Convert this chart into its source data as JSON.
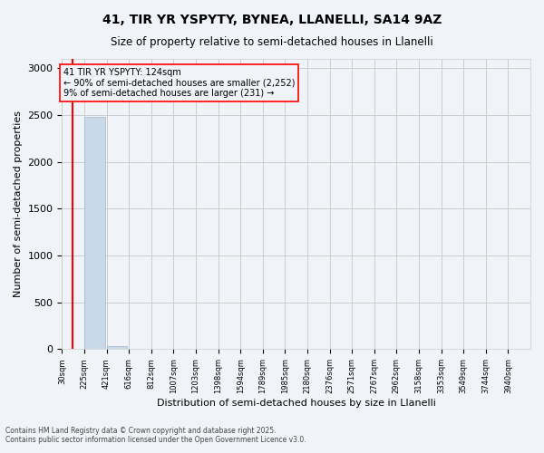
{
  "title1": "41, TIR YR YSPYTY, BYNEA, LLANELLI, SA14 9AZ",
  "title2": "Size of property relative to semi-detached houses in Llanelli",
  "xlabel": "Distribution of semi-detached houses by size in Llanelli",
  "ylabel": "Number of semi-detached properties",
  "annotation_line1": "41 TIR YR YSPYTY: 124sqm",
  "annotation_line2": "← 90% of semi-detached houses are smaller (2,252)",
  "annotation_line3": "9% of semi-detached houses are larger (231) →",
  "footer1": "Contains HM Land Registry data © Crown copyright and database right 2025.",
  "footer2": "Contains public sector information licensed under the Open Government Licence v3.0.",
  "bar_color": "#c9d9e8",
  "bar_edge_color": "#a0b8cc",
  "redline_color": "red",
  "background_color": "#f0f4f8",
  "grid_color": "#cccccc",
  "property_size_sqm": 124,
  "bins": [
    30,
    225,
    421,
    616,
    812,
    1007,
    1203,
    1398,
    1594,
    1789,
    1985,
    2180,
    2376,
    2571,
    2767,
    2962,
    3158,
    3353,
    3549,
    3744,
    3940
  ],
  "bin_labels": [
    "30sqm",
    "225sqm",
    "421sqm",
    "616sqm",
    "812sqm",
    "1007sqm",
    "1203sqm",
    "1398sqm",
    "1594sqm",
    "1789sqm",
    "1985sqm",
    "2180sqm",
    "2376sqm",
    "2571sqm",
    "2767sqm",
    "2962sqm",
    "3158sqm",
    "3353sqm",
    "3549sqm",
    "3744sqm",
    "3940sqm"
  ],
  "bar_heights": [
    5,
    2483,
    30,
    5,
    2,
    1,
    1,
    0,
    0,
    1,
    0,
    0,
    0,
    0,
    0,
    0,
    0,
    0,
    0,
    0
  ],
  "ylim": [
    0,
    3100
  ],
  "yticks": [
    0,
    500,
    1000,
    1500,
    2000,
    2500,
    3000
  ]
}
